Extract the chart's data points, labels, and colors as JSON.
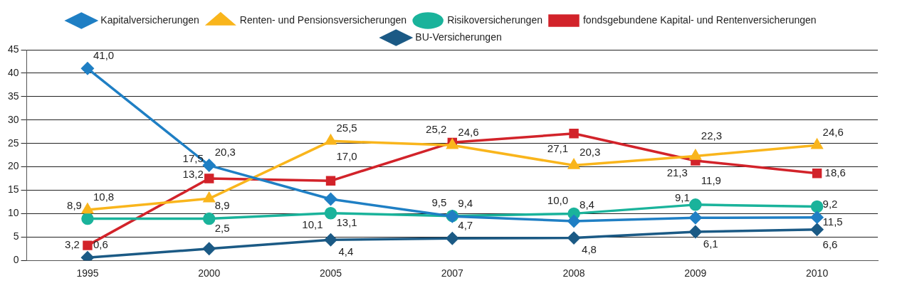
{
  "chart_data": {
    "type": "line",
    "categories": [
      "1995",
      "2000",
      "2005",
      "2007",
      "2008",
      "2009",
      "2010"
    ],
    "ylim": [
      0,
      45
    ],
    "yticks": [
      0,
      5,
      10,
      15,
      20,
      25,
      30,
      35,
      40,
      45
    ],
    "grid": "y",
    "legend": "top",
    "series": [
      {
        "name": "Kapitalversicherungen",
        "color": "#1f7fc4",
        "marker": "diamond",
        "values": [
          41.0,
          20.3,
          13.1,
          9.4,
          8.4,
          9.1,
          9.2
        ],
        "value_labels": [
          "41,0",
          "20,3",
          "13,1",
          "9,4",
          "8,4",
          "9,1",
          "9,2"
        ]
      },
      {
        "name": "Renten- und Pensionsversicherungen",
        "color": "#f9b51c",
        "marker": "triangle",
        "values": [
          10.8,
          13.2,
          25.5,
          24.6,
          20.3,
          22.3,
          24.6
        ],
        "value_labels": [
          "10,8",
          "13,2",
          "25,5",
          "24,6",
          "20,3",
          "22,3",
          "24,6"
        ]
      },
      {
        "name": "Risikoversicherungen",
        "color": "#1ab39b",
        "marker": "circle",
        "values": [
          8.9,
          8.9,
          10.1,
          9.5,
          10.0,
          11.9,
          11.5
        ],
        "value_labels": [
          "8,9",
          "8,9",
          "10,1",
          "9,5",
          "10,0",
          "11,9",
          "11,5"
        ]
      },
      {
        "name": "fondsgebundene Kapital- und Rentenversicherungen",
        "color": "#d2232a",
        "marker": "square",
        "values": [
          3.2,
          17.5,
          17.0,
          25.2,
          27.1,
          21.3,
          18.6
        ],
        "value_labels": [
          "3,2",
          "17,5",
          "17,0",
          "25,2",
          "27,1",
          "21,3",
          "18,6"
        ]
      },
      {
        "name": "BU-Versicherungen",
        "color": "#1b5a85",
        "marker": "diamond",
        "values": [
          0.6,
          2.5,
          4.4,
          4.7,
          4.8,
          6.1,
          6.6
        ],
        "value_labels": [
          "0,6",
          "2,5",
          "4,4",
          "4,7",
          "4,8",
          "6,1",
          "6,6"
        ]
      }
    ]
  }
}
